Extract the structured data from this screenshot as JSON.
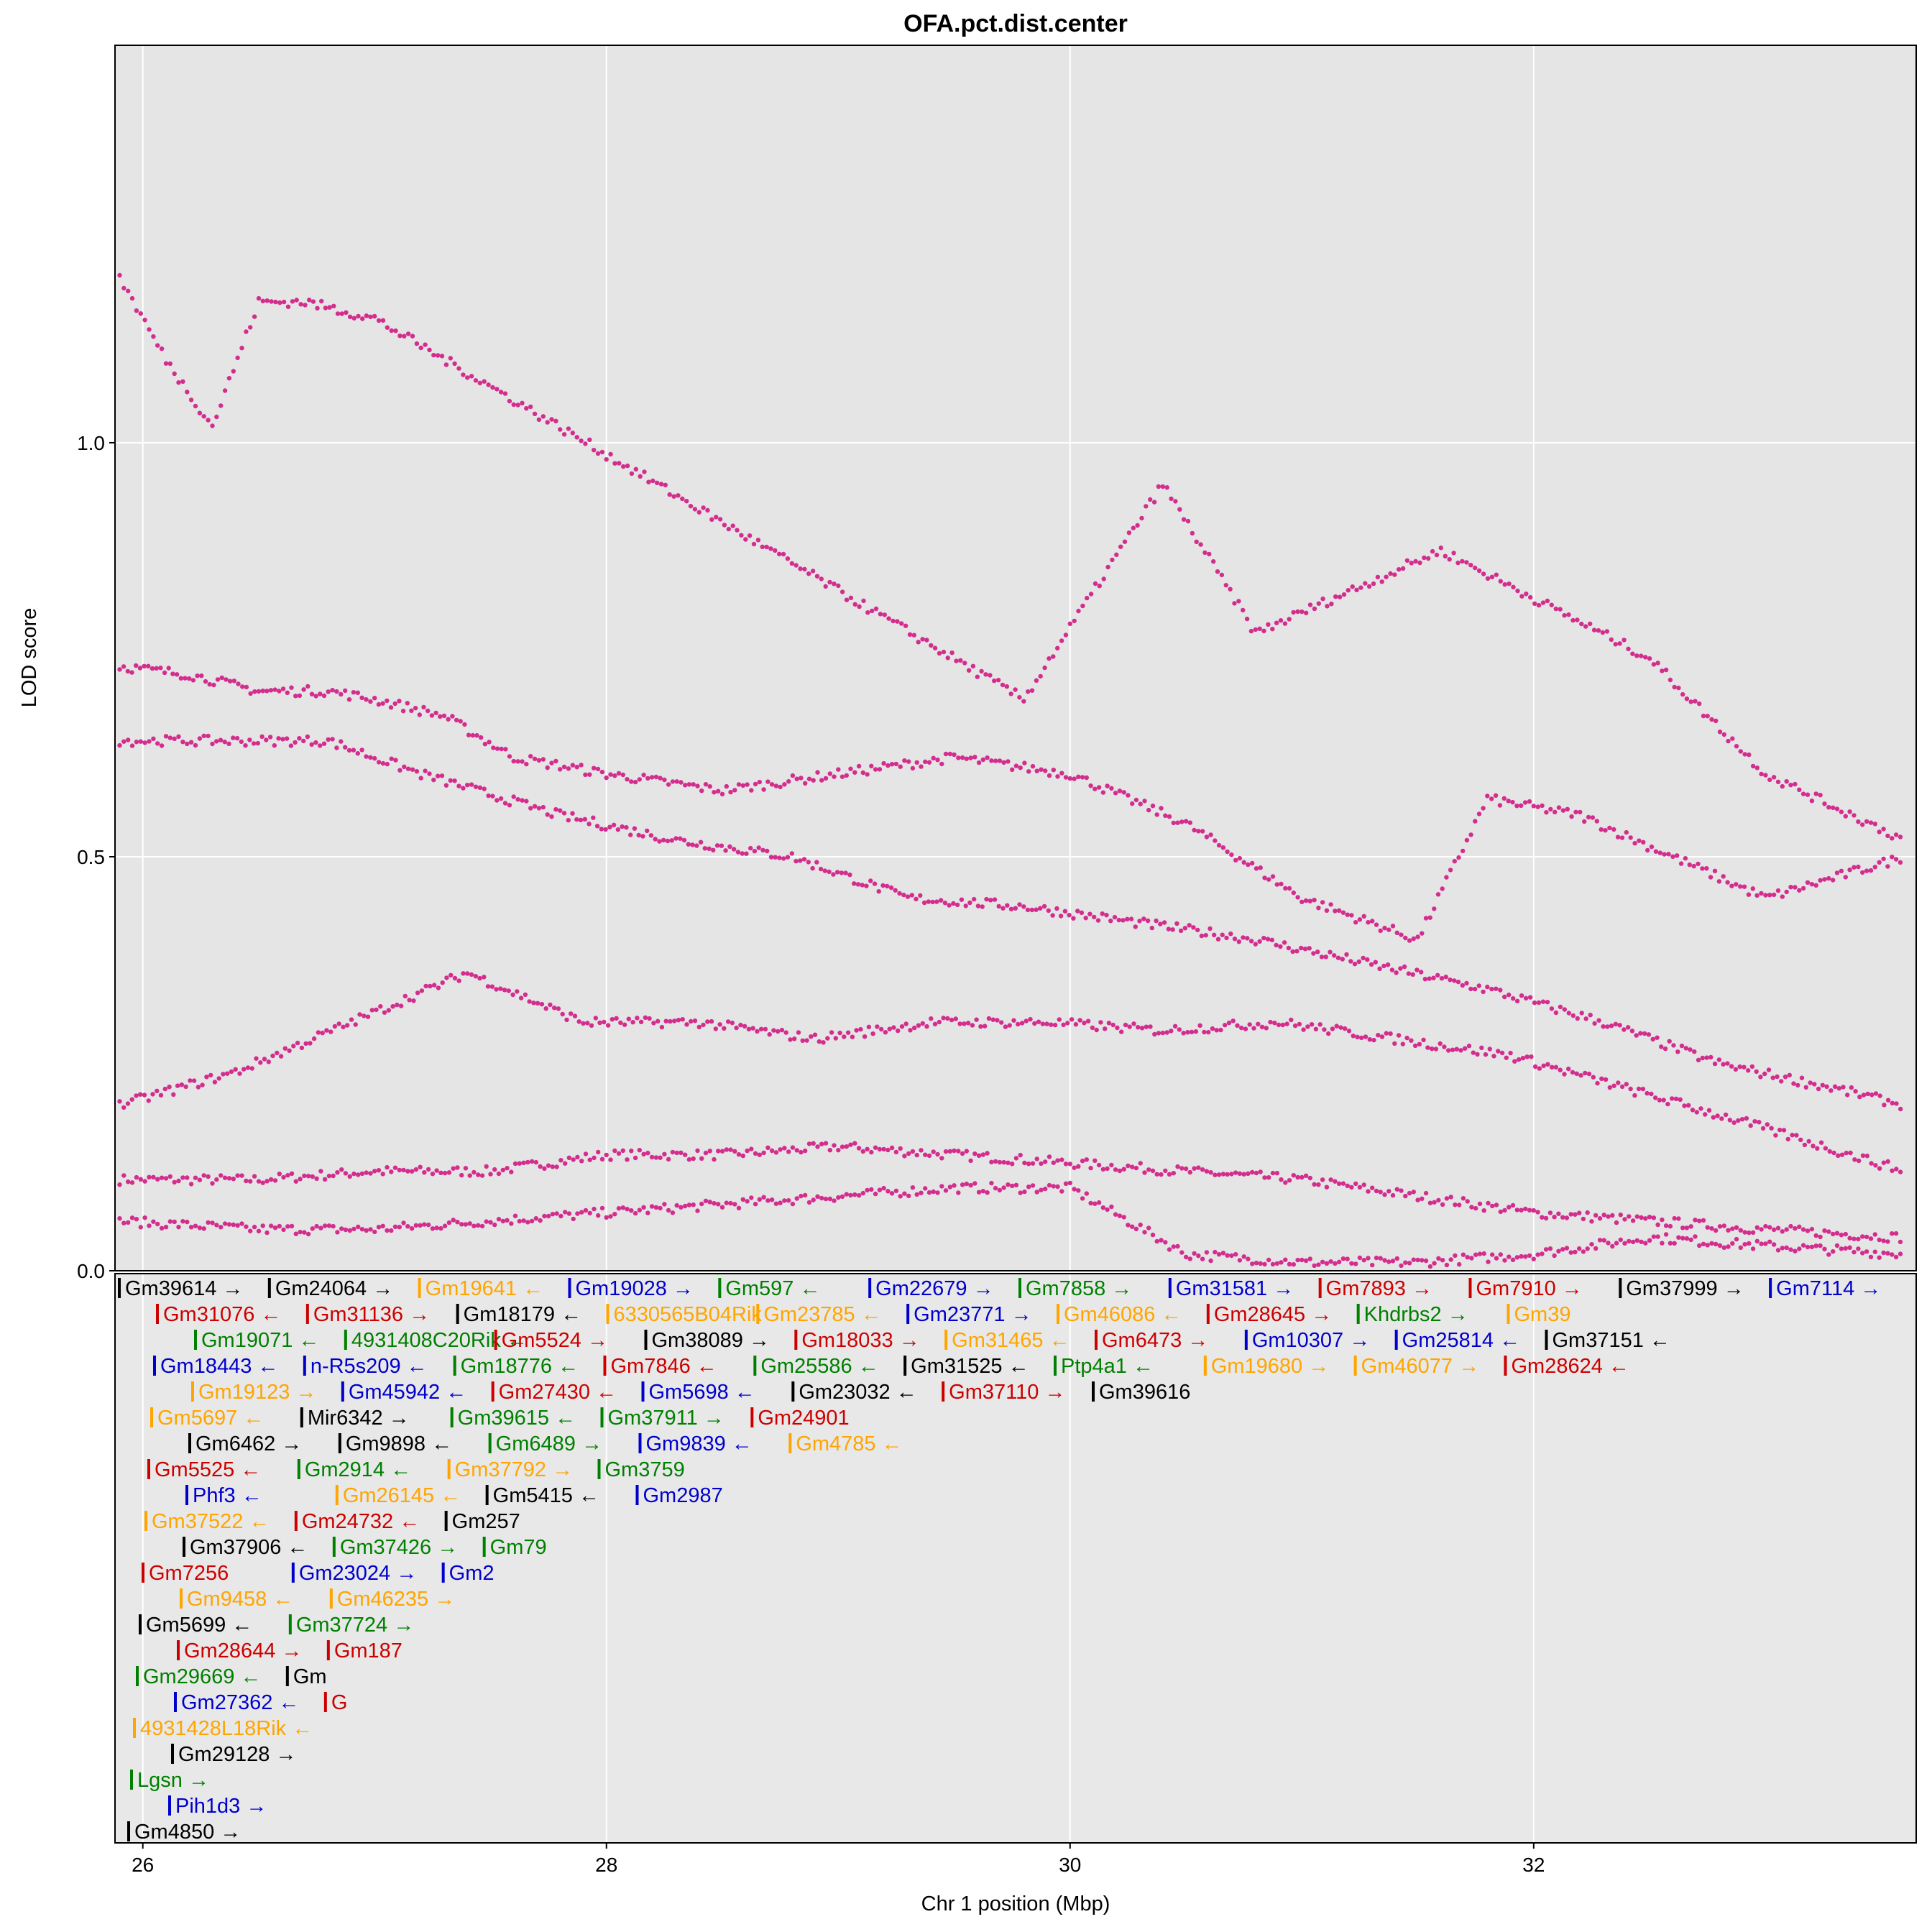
{
  "chart_data": {
    "type": "scatter",
    "title": "OFA.pct.dist.center",
    "xlabel": "Chr 1 position (Mbp)",
    "ylabel": "LOD score",
    "xlim": [
      25.88,
      33.65
    ],
    "ylim": [
      0.0,
      1.48
    ],
    "x_ticks": [
      26,
      28,
      30,
      32
    ],
    "y_ticks": [
      0.0,
      0.5,
      1.0
    ],
    "x_tick_labels": [
      "26",
      "28",
      "30",
      "32"
    ],
    "y_tick_labels": [
      "0.0",
      "0.5",
      "1.0"
    ],
    "grid": true,
    "point_color": "#d32d8d",
    "panel_bg": "#e5e5e5",
    "gene_panel_bg": "#e8e8e8",
    "series": [
      {
        "values": [
          [
            25.9,
            0.11
          ],
          [
            26.5,
            0.11
          ],
          [
            27.0,
            0.12
          ],
          [
            27.5,
            0.12
          ],
          [
            28.0,
            0.14
          ],
          [
            28.5,
            0.14
          ],
          [
            29.0,
            0.15
          ],
          [
            29.5,
            0.14
          ],
          [
            30.0,
            0.13
          ],
          [
            30.5,
            0.12
          ],
          [
            31.0,
            0.11
          ],
          [
            31.5,
            0.09
          ],
          [
            32.0,
            0.07
          ],
          [
            32.5,
            0.06
          ],
          [
            33.0,
            0.05
          ],
          [
            33.6,
            0.04
          ]
        ]
      },
      {
        "values": [
          [
            25.9,
            0.06
          ],
          [
            26.5,
            0.05
          ],
          [
            27.0,
            0.05
          ],
          [
            27.5,
            0.06
          ],
          [
            28.0,
            0.07
          ],
          [
            28.5,
            0.08
          ],
          [
            29.0,
            0.09
          ],
          [
            29.5,
            0.1
          ],
          [
            30.0,
            0.1
          ],
          [
            30.5,
            0.02
          ],
          [
            31.0,
            0.01
          ],
          [
            31.5,
            0.01
          ],
          [
            32.0,
            0.02
          ],
          [
            32.5,
            0.04
          ],
          [
            33.0,
            0.03
          ],
          [
            33.6,
            0.02
          ]
        ]
      },
      {
        "values": [
          [
            25.9,
            0.73
          ],
          [
            26.2,
            0.72
          ],
          [
            26.5,
            0.7
          ],
          [
            26.8,
            0.7
          ],
          [
            27.0,
            0.69
          ],
          [
            27.3,
            0.67
          ],
          [
            27.6,
            0.62
          ],
          [
            28.0,
            0.6
          ],
          [
            28.5,
            0.58
          ],
          [
            29.0,
            0.6
          ],
          [
            29.5,
            0.62
          ],
          [
            30.0,
            0.6
          ],
          [
            30.5,
            0.54
          ],
          [
            31.0,
            0.45
          ],
          [
            31.5,
            0.4
          ],
          [
            31.8,
            0.57
          ],
          [
            32.2,
            0.55
          ],
          [
            32.6,
            0.5
          ],
          [
            33.0,
            0.45
          ],
          [
            33.6,
            0.5
          ]
        ]
      },
      {
        "values": [
          [
            25.9,
            0.64
          ],
          [
            26.3,
            0.64
          ],
          [
            26.8,
            0.64
          ],
          [
            27.2,
            0.6
          ],
          [
            27.8,
            0.55
          ],
          [
            28.3,
            0.52
          ],
          [
            28.8,
            0.5
          ],
          [
            29.3,
            0.45
          ],
          [
            29.8,
            0.44
          ],
          [
            30.3,
            0.42
          ],
          [
            30.8,
            0.4
          ],
          [
            31.3,
            0.37
          ],
          [
            31.8,
            0.34
          ],
          [
            32.3,
            0.3
          ],
          [
            32.8,
            0.25
          ],
          [
            33.3,
            0.22
          ],
          [
            33.6,
            0.2
          ]
        ]
      },
      {
        "values": [
          [
            25.9,
            0.2
          ],
          [
            26.4,
            0.24
          ],
          [
            26.9,
            0.3
          ],
          [
            27.4,
            0.36
          ],
          [
            27.9,
            0.3
          ],
          [
            28.4,
            0.3
          ],
          [
            28.9,
            0.28
          ],
          [
            29.4,
            0.3
          ],
          [
            29.9,
            0.3
          ],
          [
            30.4,
            0.29
          ],
          [
            30.9,
            0.3
          ],
          [
            31.4,
            0.28
          ],
          [
            31.9,
            0.26
          ],
          [
            32.4,
            0.22
          ],
          [
            32.9,
            0.18
          ],
          [
            33.6,
            0.12
          ]
        ]
      },
      {
        "values": [
          [
            25.9,
            1.2
          ],
          [
            26.1,
            1.1
          ],
          [
            26.3,
            1.02
          ],
          [
            26.5,
            1.17
          ],
          [
            26.7,
            1.17
          ],
          [
            27.0,
            1.15
          ],
          [
            29.8,
            0.69
          ],
          [
            30.4,
            0.95
          ],
          [
            30.8,
            0.77
          ],
          [
            31.6,
            0.87
          ],
          [
            32.5,
            0.74
          ],
          [
            33.0,
            0.6
          ],
          [
            33.6,
            0.52
          ]
        ]
      }
    ],
    "genes": {
      "lane_1": [
        {
          "label": "Gm39614 →",
          "color": "#000000"
        },
        {
          "label": "Gm24064 →",
          "color": "#000000"
        },
        {
          "label": "Gm19641 ←",
          "color": "#ffa500"
        },
        {
          "label": "Gm19028 →",
          "color": "#0000cd"
        },
        {
          "label": "Gm597 ←",
          "color": "#008000"
        },
        {
          "label": "Gm22679 →",
          "color": "#0000cd"
        },
        {
          "label": "Gm7858 →",
          "color": "#008000"
        },
        {
          "label": "Gm31581 →",
          "color": "#0000cd"
        },
        {
          "label": "Gm7893 →",
          "color": "#cd0000"
        },
        {
          "label": "Gm7910 →",
          "color": "#cd0000"
        },
        {
          "label": "Gm37999 →",
          "color": "#000000"
        },
        {
          "label": "Gm7114 →",
          "color": "#0000cd"
        }
      ],
      "lane_2": [
        {
          "label": "Gm31076 ←",
          "color": "#cd0000"
        },
        {
          "label": "Gm31136 →",
          "color": "#cd0000"
        },
        {
          "label": "Gm18179 ←",
          "color": "#000000"
        },
        {
          "label": "6330565B04Rik",
          "color": "#ffa500"
        },
        {
          "label": "Gm23785 ←",
          "color": "#ffa500"
        },
        {
          "label": "Gm23771 →",
          "color": "#0000cd"
        },
        {
          "label": "Gm46086 ←",
          "color": "#ffa500"
        },
        {
          "label": "Gm28645 →",
          "color": "#cd0000"
        },
        {
          "label": "Khdrbs2 →",
          "color": "#008000"
        },
        {
          "label": "Gm39",
          "color": "#ffa500"
        }
      ],
      "lane_3": [
        {
          "label": "Gm19071 ←",
          "color": "#008000"
        },
        {
          "label": "4931408C20Rik ←",
          "color": "#008000"
        },
        {
          "label": "Gm5524 →",
          "color": "#cd0000"
        },
        {
          "label": "Gm38089 →",
          "color": "#000000"
        },
        {
          "label": "Gm18033 →",
          "color": "#cd0000"
        },
        {
          "label": "Gm31465 ←",
          "color": "#ffa500"
        },
        {
          "label": "Gm6473 →",
          "color": "#cd0000"
        },
        {
          "label": "Gm10307 →",
          "color": "#0000cd"
        },
        {
          "label": "Gm25814 ←",
          "color": "#0000cd"
        },
        {
          "label": "Gm37151 ←",
          "color": "#000000"
        }
      ],
      "lane_4": [
        {
          "label": "Gm18443 ←",
          "color": "#0000cd"
        },
        {
          "label": "n-R5s209 ←",
          "color": "#0000cd"
        },
        {
          "label": "Gm18776 ←",
          "color": "#008000"
        },
        {
          "label": "Gm7846 ←",
          "color": "#cd0000"
        },
        {
          "label": "Gm25586 ←",
          "color": "#008000"
        },
        {
          "label": "Gm31525 ←",
          "color": "#000000"
        },
        {
          "label": "Ptp4a1 ←",
          "color": "#008000"
        },
        {
          "label": "Gm19680 →",
          "color": "#ffa500"
        },
        {
          "label": "Gm46077 →",
          "color": "#ffa500"
        },
        {
          "label": "Gm28624 ←",
          "color": "#cd0000"
        }
      ],
      "lane_5": [
        {
          "label": "Gm19123 →",
          "color": "#ffa500"
        },
        {
          "label": "Gm45942 ←",
          "color": "#0000cd"
        },
        {
          "label": "Gm27430 ←",
          "color": "#cd0000"
        },
        {
          "label": "Gm5698 ←",
          "color": "#0000cd"
        },
        {
          "label": "Gm23032 ←",
          "color": "#000000"
        },
        {
          "label": "Gm37110 →",
          "color": "#cd0000"
        },
        {
          "label": "Gm39616",
          "color": "#000000"
        }
      ],
      "lane_6": [
        {
          "label": "Gm5697 ←",
          "color": "#ffa500"
        },
        {
          "label": "Mir6342 →",
          "color": "#000000"
        },
        {
          "label": "Gm39615 ←",
          "color": "#008000"
        },
        {
          "label": "Gm37911 →",
          "color": "#008000"
        },
        {
          "label": "Gm24901",
          "color": "#cd0000"
        }
      ],
      "lane_7": [
        {
          "label": "Gm6462 →",
          "color": "#000000"
        },
        {
          "label": "Gm9898 ←",
          "color": "#000000"
        },
        {
          "label": "Gm6489 →",
          "color": "#008000"
        },
        {
          "label": "Gm9839 ←",
          "color": "#0000cd"
        },
        {
          "label": "Gm4785 ←",
          "color": "#ffa500"
        }
      ],
      "lane_8": [
        {
          "label": "Gm5525 ←",
          "color": "#cd0000"
        },
        {
          "label": "Gm2914 ←",
          "color": "#008000"
        },
        {
          "label": "Gm37792 →",
          "color": "#ffa500"
        },
        {
          "label": "Gm3759",
          "color": "#008000"
        }
      ],
      "lane_9": [
        {
          "label": "Phf3 ←",
          "color": "#0000cd"
        },
        {
          "label": "Gm26145 ←",
          "color": "#ffa500"
        },
        {
          "label": "Gm5415 ←",
          "color": "#000000"
        },
        {
          "label": "Gm2987",
          "color": "#0000cd"
        }
      ],
      "lane_10": [
        {
          "label": "Gm37522 ←",
          "color": "#ffa500"
        },
        {
          "label": "Gm24732 ←",
          "color": "#cd0000"
        },
        {
          "label": "Gm257",
          "color": "#000000"
        }
      ],
      "lane_11": [
        {
          "label": "Gm37906 ←",
          "color": "#000000"
        },
        {
          "label": "Gm37426 →",
          "color": "#008000"
        },
        {
          "label": "Gm79",
          "color": "#008000"
        }
      ],
      "lane_12": [
        {
          "label": "Gm7256",
          "color": "#cd0000"
        },
        {
          "label": "Gm23024 →",
          "color": "#0000cd"
        },
        {
          "label": "Gm2",
          "color": "#0000cd"
        }
      ],
      "lane_13": [
        {
          "label": "Gm9458 ←",
          "color": "#ffa500"
        },
        {
          "label": "Gm46235 →",
          "color": "#ffa500"
        }
      ],
      "lane_14": [
        {
          "label": "Gm5699 ←",
          "color": "#000000"
        },
        {
          "label": "Gm37724 →",
          "color": "#008000"
        }
      ],
      "lane_15": [
        {
          "label": "Gm28644 →",
          "color": "#cd0000"
        },
        {
          "label": "Gm187",
          "color": "#cd0000"
        }
      ],
      "lane_16": [
        {
          "label": "Gm29669 ←",
          "color": "#008000"
        },
        {
          "label": "Gm",
          "color": "#000000"
        }
      ],
      "lane_17": [
        {
          "label": "Gm27362 ←",
          "color": "#0000cd"
        },
        {
          "label": "G",
          "color": "#cd0000"
        }
      ],
      "lane_18": [
        {
          "label": "4931428L18Rik ←",
          "color": "#ffa500"
        }
      ],
      "lane_19": [
        {
          "label": "Gm29128 →",
          "color": "#000000"
        }
      ],
      "lane_20": [
        {
          "label": "Lgsn →",
          "color": "#008000"
        }
      ],
      "lane_21": [
        {
          "label": "Pih1d3 →",
          "color": "#0000cd"
        }
      ],
      "lane_22": [
        {
          "label": "Gm4850 →",
          "color": "#000000"
        }
      ]
    }
  }
}
